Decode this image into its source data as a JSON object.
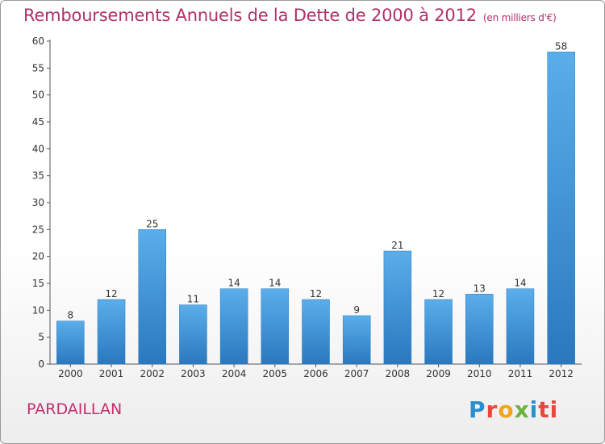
{
  "chart_data": {
    "type": "bar",
    "title": "Remboursements Annuels de la Dette de 2000 à 2012",
    "unit": "(en milliers d'€)",
    "categories": [
      "2000",
      "2001",
      "2002",
      "2003",
      "2004",
      "2005",
      "2006",
      "2007",
      "2008",
      "2009",
      "2010",
      "2011",
      "2012"
    ],
    "values": [
      8,
      12,
      25,
      11,
      14,
      14,
      12,
      9,
      21,
      12,
      13,
      14,
      58
    ],
    "ylim": [
      0,
      60
    ],
    "yticks": [
      0,
      5,
      10,
      15,
      20,
      25,
      30,
      35,
      40,
      45,
      50,
      55,
      60
    ],
    "grid": false,
    "bar_color": "#3a8fd6"
  },
  "commune": "PARDAILLAN",
  "logo": [
    "P",
    "r",
    "o",
    "x",
    "i",
    "ti"
  ]
}
